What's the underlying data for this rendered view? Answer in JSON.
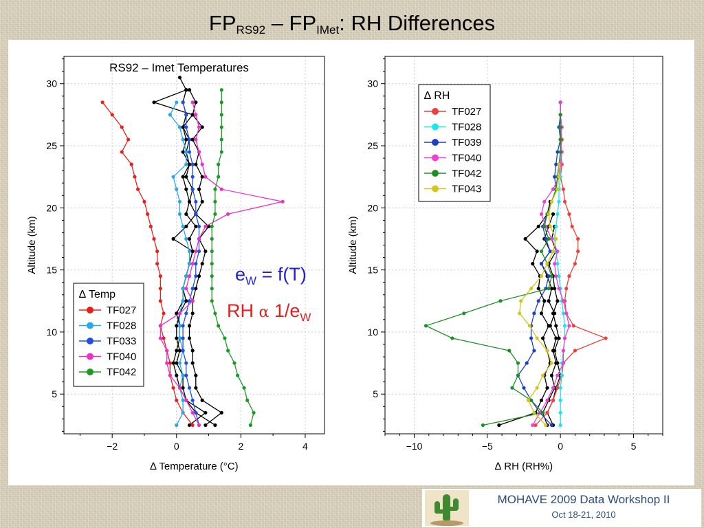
{
  "slide": {
    "title_parts": [
      "FP",
      "RS92",
      " – FP",
      "IMet",
      ": RH Differences"
    ],
    "footer_title": "MOHAVE 2009 Data Workshop II",
    "footer_date": "Oct 18-21, 2010"
  },
  "annotations": {
    "ew_main": "e",
    "ew_sub": "W",
    "ew_rest": " = f(T)",
    "rh_main": "RH ",
    "rh_alpha": "α",
    "rh_rest": " 1/e",
    "rh_sub": "W",
    "ew_color": "#1f1fd6",
    "rh_color": "#e0201c"
  },
  "chart_data": [
    {
      "type": "line",
      "title": "RS92 – Imet Temperatures",
      "xlabel": "∆ Temperature (°C)",
      "ylabel": "Altitude (km)",
      "xlim": [
        -3.5,
        4.6
      ],
      "ylim": [
        1.8,
        32.2
      ],
      "xticks": [
        -2,
        0,
        2,
        4
      ],
      "yticks": [
        5,
        10,
        15,
        20,
        25,
        30
      ],
      "grid": true,
      "legend_title": "∆ Temp",
      "legend_position": "bottom-left",
      "series": [
        {
          "name": "TF027",
          "color": "#e8201c",
          "y": [
            28.5,
            27.5,
            26.5,
            25.5,
            24.5,
            23.5,
            22.5,
            21.5,
            20.5,
            19.5,
            18.5,
            17.5,
            16.5,
            15.5,
            14.5,
            13.5,
            12.5,
            11.5,
            10.5,
            9.5,
            8.5,
            7.5,
            6.5,
            5.5,
            4.5,
            3.5,
            2.5
          ],
          "x": [
            -2.3,
            -2.0,
            -1.7,
            -1.5,
            -1.7,
            -1.4,
            -1.3,
            -1.2,
            -1.0,
            -0.9,
            -0.8,
            -0.7,
            -0.6,
            -0.6,
            -0.5,
            -0.5,
            -0.5,
            -0.4,
            -0.5,
            -0.4,
            -0.3,
            -0.2,
            -0.2,
            -0.1,
            0.0,
            0.2,
            0.5
          ]
        },
        {
          "name": "TF028",
          "color": "#2aa6ef",
          "y": [
            28.5,
            27.5,
            26.5,
            25.5,
            24.5,
            23.5,
            22.5,
            21.5,
            20.5,
            19.5,
            18.5,
            17.5,
            16.5,
            15.5,
            14.5,
            13.5,
            12.5,
            11.5,
            10.5,
            9.5,
            8.5,
            7.5,
            6.5,
            5.5,
            4.5,
            3.5,
            2.5
          ],
          "x": [
            0.0,
            -0.2,
            0.1,
            0.2,
            0.3,
            0.3,
            -0.1,
            0.0,
            0.1,
            0.1,
            0.2,
            0.3,
            0.4,
            0.4,
            0.3,
            0.2,
            0.2,
            0.1,
            0.1,
            0.1,
            0.2,
            0.1,
            0.2,
            0.1,
            0.2,
            0.2,
            0.0
          ]
        },
        {
          "name": "TF033",
          "color": "#1f4fe0",
          "y": [
            28.5,
            27.5,
            26.5,
            25.5,
            24.5,
            23.5,
            22.5,
            21.5,
            20.5,
            19.5,
            18.5,
            17.5,
            16.5,
            15.5,
            14.5,
            13.5,
            12.5,
            11.5,
            10.5,
            9.5,
            8.5,
            7.5,
            6.5,
            5.5,
            4.5,
            3.5,
            2.5
          ],
          "x": [
            0.2,
            0.3,
            0.3,
            0.4,
            0.4,
            0.5,
            0.5,
            0.5,
            0.6,
            0.6,
            0.7,
            0.7,
            0.7,
            0.6,
            0.6,
            0.5,
            0.4,
            0.3,
            0.2,
            0.2,
            0.2,
            0.3,
            0.3,
            0.4,
            0.5,
            0.6,
            0.7
          ]
        },
        {
          "name": "TF040",
          "color": "#ec30c8",
          "y": [
            28.5,
            27.5,
            26.5,
            25.5,
            24.5,
            23.5,
            22.5,
            21.5,
            20.5,
            19.5,
            18.5,
            17.5,
            16.5,
            15.5,
            14.5,
            13.5,
            12.5,
            11.5,
            10.5,
            9.5,
            8.5,
            7.5,
            6.5,
            5.5,
            4.5,
            3.5,
            2.5
          ],
          "x": [
            0.5,
            0.6,
            0.7,
            0.6,
            0.7,
            0.8,
            0.9,
            1.4,
            3.3,
            1.6,
            0.9,
            0.7,
            0.6,
            0.5,
            0.4,
            0.3,
            0.5,
            0.1,
            -0.5,
            -0.5,
            -0.3,
            -0.3,
            -0.2,
            0.1,
            0.3,
            0.5,
            0.7
          ]
        },
        {
          "name": "TF042",
          "color": "#1c9a25",
          "y": [
            29.5,
            28.5,
            27.5,
            26.5,
            25.5,
            24.5,
            23.5,
            22.5,
            21.5,
            20.5,
            19.5,
            18.5,
            17.5,
            16.5,
            15.5,
            14.5,
            13.5,
            12.5,
            11.5,
            10.5,
            9.5,
            8.5,
            7.5,
            6.5,
            5.5,
            4.5,
            3.5,
            2.5
          ],
          "x": [
            1.4,
            1.4,
            1.4,
            1.4,
            1.4,
            1.4,
            1.3,
            1.3,
            1.2,
            1.2,
            1.2,
            1.1,
            1.1,
            1.1,
            1.1,
            1.1,
            1.1,
            1.1,
            1.2,
            1.3,
            1.5,
            1.6,
            1.8,
            1.9,
            2.1,
            2.2,
            2.4,
            2.3
          ]
        },
        {
          "name": "",
          "color": "#000000",
          "y": [
            30.5,
            29.5,
            28.5,
            27.5,
            26.5,
            25.5,
            24.5,
            23.5,
            22.5,
            21.5,
            20.5,
            19.5,
            18.5,
            17.5,
            16.5,
            15.5,
            14.5,
            13.5,
            12.5,
            11.5,
            10.5,
            9.5,
            8.5,
            7.5,
            6.5,
            5.5,
            4.5,
            3.5,
            2.5
          ],
          "x": [
            0.1,
            0.3,
            0.2,
            0.3,
            0.2,
            0.4,
            0.3,
            0.4,
            0.2,
            0.3,
            0.4,
            0.3,
            0.6,
            0.4,
            0.5,
            0.4,
            0.3,
            0.2,
            0.3,
            0.1,
            0.0,
            0.0,
            0.1,
            0.0,
            0.2,
            0.2,
            0.3,
            0.6,
            1.2
          ]
        },
        {
          "name": "",
          "color": "#000000",
          "y": [
            29.5,
            28.5,
            27.5,
            26.5,
            25.5,
            24.5,
            23.5,
            22.5,
            21.5,
            20.5,
            19.5,
            18.5,
            17.5,
            16.5,
            15.5,
            14.5,
            13.5,
            12.5,
            11.5,
            10.5,
            9.5,
            8.5,
            7.5,
            6.5,
            5.5,
            4.5,
            3.5,
            2.5
          ],
          "x": [
            0.4,
            0.6,
            0.5,
            0.8,
            0.5,
            0.7,
            0.6,
            0.8,
            0.7,
            0.8,
            0.6,
            1.0,
            0.7,
            0.9,
            0.8,
            0.7,
            0.6,
            0.5,
            0.5,
            0.4,
            0.4,
            0.5,
            0.5,
            0.6,
            0.6,
            0.8,
            1.4,
            0.9
          ]
        },
        {
          "name": "",
          "color": "#000000",
          "y": [
            29.5,
            28.5,
            27.5,
            26.5,
            25.5,
            24.5,
            23.5,
            22.5,
            21.5,
            20.5,
            19.5,
            18.5,
            17.5,
            16.5,
            15.5,
            14.5,
            13.5,
            12.5,
            11.5,
            10.5,
            9.5,
            8.5,
            7.5,
            6.5,
            5.5,
            4.5,
            3.5,
            2.5
          ],
          "x": [
            0.3,
            -0.7,
            0.5,
            0.2,
            0.3,
            0.2,
            0.4,
            0.3,
            0.5,
            0.4,
            0.6,
            0.3,
            -0.1,
            0.5,
            0.4,
            0.3,
            0.2,
            0.2,
            0.0,
            0.1,
            0.1,
            0.0,
            -0.1,
            0.0,
            0.1,
            0.3,
            0.9,
            0.4
          ]
        }
      ]
    },
    {
      "type": "line",
      "xlabel": "∆ RH (RH%)",
      "ylabel": "Altitude (km)",
      "xlim": [
        -12.0,
        7.0
      ],
      "ylim": [
        1.8,
        32.2
      ],
      "xticks": [
        -10,
        -5,
        0,
        5
      ],
      "yticks": [
        5,
        10,
        15,
        20,
        25,
        30
      ],
      "grid": true,
      "legend_title": "∆ RH",
      "legend_position": "top-left",
      "series": [
        {
          "name": "TF027",
          "color": "#ee3f3a",
          "y": [
            28.5,
            27.5,
            26.5,
            25.5,
            24.5,
            23.5,
            22.5,
            21.5,
            20.5,
            19.5,
            18.5,
            17.5,
            16.5,
            15.5,
            14.5,
            13.5,
            12.5,
            11.5,
            10.5,
            9.5,
            8.5,
            7.5,
            6.5,
            5.5,
            4.5,
            3.5,
            2.5
          ],
          "x": [
            0.0,
            0.0,
            0.0,
            0.1,
            0.0,
            0.1,
            0.0,
            0.2,
            0.3,
            0.6,
            0.8,
            1.2,
            1.2,
            1.0,
            0.6,
            0.4,
            0.3,
            0.4,
            0.9,
            3.1,
            1.0,
            0.2,
            0.1,
            -0.2,
            -0.5,
            -0.9,
            -1.7
          ]
        },
        {
          "name": "TF028",
          "color": "#1de3f0",
          "y": [
            28.5,
            27.5,
            26.5,
            25.5,
            24.5,
            23.5,
            22.5,
            21.5,
            20.5,
            19.5,
            18.5,
            17.5,
            16.5,
            15.5,
            14.5,
            13.5,
            12.5,
            11.5,
            10.5,
            9.5,
            8.5,
            7.5,
            6.5,
            5.5,
            4.5,
            3.5,
            2.5
          ],
          "x": [
            0.0,
            0.0,
            0.0,
            0.0,
            0.0,
            0.0,
            0.0,
            -0.1,
            -0.1,
            -0.2,
            -0.3,
            -0.4,
            -0.3,
            -0.2,
            -0.1,
            0.0,
            0.1,
            0.2,
            0.3,
            0.3,
            0.2,
            0.1,
            0.1,
            0.0,
            0.0,
            0.0,
            0.0
          ]
        },
        {
          "name": "TF039",
          "color": "#1c3fc4",
          "y": [
            28.5,
            27.5,
            26.5,
            25.5,
            24.5,
            23.5,
            22.5,
            21.5,
            20.5,
            19.5,
            18.5,
            17.5,
            16.5,
            15.5,
            14.5,
            13.5,
            12.5,
            11.5,
            10.5,
            9.5,
            8.5,
            7.5,
            6.5,
            5.5,
            4.5,
            3.5,
            2.5
          ],
          "x": [
            0.0,
            0.0,
            -0.1,
            0.0,
            -0.2,
            -0.3,
            -0.4,
            -0.3,
            -0.6,
            -0.9,
            -1.2,
            -1.0,
            -0.7,
            -1.3,
            -0.8,
            -1.0,
            -1.5,
            -1.8,
            -2.0,
            -2.0,
            -1.8,
            -2.3,
            -2.9,
            -2.5,
            -2.0,
            -1.4,
            -0.6
          ]
        },
        {
          "name": "TF040",
          "color": "#ee3fd3",
          "y": [
            28.5,
            27.5,
            26.5,
            25.5,
            24.5,
            23.5,
            22.5,
            21.5,
            20.5,
            19.5,
            18.5,
            17.5,
            16.5,
            15.5,
            14.5,
            13.5,
            12.5,
            11.5,
            10.5,
            9.5,
            8.5,
            7.5,
            6.5,
            5.5,
            4.5,
            3.5,
            2.5
          ],
          "x": [
            0.0,
            0.0,
            0.1,
            0.0,
            0.1,
            0.0,
            -0.1,
            -0.5,
            -1.1,
            -1.3,
            -1.0,
            -0.6,
            -0.2,
            -0.4,
            -0.3,
            -0.1,
            0.2,
            0.4,
            0.6,
            0.3,
            0.2,
            0.2,
            -0.2,
            -0.5,
            -0.9,
            -1.4,
            -1.9
          ]
        },
        {
          "name": "TF042",
          "color": "#1e8f23",
          "y": [
            27.5,
            26.5,
            25.5,
            24.5,
            23.5,
            22.5,
            21.5,
            20.5,
            19.5,
            18.5,
            17.5,
            16.5,
            15.5,
            14.5,
            13.5,
            12.5,
            11.5,
            10.5,
            9.5,
            8.5,
            7.5,
            6.5,
            5.5,
            4.5,
            3.5,
            2.5
          ],
          "x": [
            0.0,
            0.0,
            0.0,
            0.0,
            -0.1,
            -0.2,
            -0.3,
            -0.6,
            -0.9,
            -1.1,
            -0.8,
            -1.3,
            -0.9,
            -0.6,
            -0.8,
            -4.1,
            -6.6,
            -9.2,
            -7.4,
            -3.5,
            -2.9,
            -2.9,
            -3.3,
            -2.0,
            -1.2,
            -5.3
          ]
        },
        {
          "name": "TF043",
          "color": "#d4c51f",
          "y": [
            23.5,
            22.5,
            21.5,
            20.5,
            19.5,
            18.5,
            17.5,
            16.5,
            15.5,
            14.5,
            13.5,
            12.5,
            11.5,
            10.5,
            9.5,
            8.5,
            7.5,
            6.5,
            5.5,
            4.5,
            3.5,
            2.5
          ],
          "x": [
            -0.1,
            -0.1,
            -0.2,
            -0.6,
            -0.8,
            -0.7,
            -0.3,
            -0.5,
            -0.9,
            -1.3,
            -2.0,
            -2.7,
            -2.8,
            -2.1,
            -1.6,
            -0.9,
            -0.6,
            -1.2,
            -1.6,
            -2.2,
            -1.8,
            -1.0
          ]
        },
        {
          "name": "",
          "color": "#000000",
          "y": [
            20.5,
            19.5,
            18.5,
            17.5,
            16.5,
            15.5,
            14.5,
            13.5,
            12.5,
            11.5,
            10.5,
            9.5,
            8.5,
            7.5,
            6.5,
            5.5,
            4.5,
            3.5,
            2.5
          ],
          "x": [
            -0.7,
            -0.9,
            -1.5,
            -2.4,
            -1.6,
            -1.9,
            -1.4,
            -1.5,
            -1.1,
            -1.3,
            -0.8,
            -1.2,
            -0.9,
            -0.7,
            -1.1,
            -0.9,
            -1.3,
            -1.7,
            -4.2
          ]
        },
        {
          "name": "",
          "color": "#000000",
          "y": [
            19.5,
            18.5,
            17.5,
            16.5,
            15.5,
            14.5,
            13.5,
            12.5,
            11.5,
            10.5,
            9.5,
            8.5,
            7.5,
            6.5,
            5.5,
            4.5,
            3.5,
            2.5
          ],
          "x": [
            -0.5,
            -0.8,
            -1.1,
            -0.7,
            -1.3,
            -0.9,
            -0.6,
            -0.8,
            -0.4,
            -0.7,
            -0.3,
            -0.5,
            -0.3,
            -0.6,
            -0.4,
            -0.8,
            -1.2,
            -0.9
          ]
        },
        {
          "name": "",
          "color": "#000000",
          "y": [
            18.5,
            17.5,
            16.5,
            15.5,
            14.5,
            13.5,
            12.5,
            11.5,
            10.5,
            9.5,
            8.5,
            7.5,
            6.5,
            5.5,
            4.5,
            3.5,
            2.5
          ],
          "x": [
            -0.4,
            -0.6,
            -0.3,
            -0.8,
            -0.5,
            -0.4,
            -0.2,
            -0.5,
            -0.3,
            -0.1,
            -0.4,
            -0.2,
            0.0,
            -0.3,
            -0.5,
            -0.9,
            -0.5
          ]
        }
      ]
    }
  ]
}
